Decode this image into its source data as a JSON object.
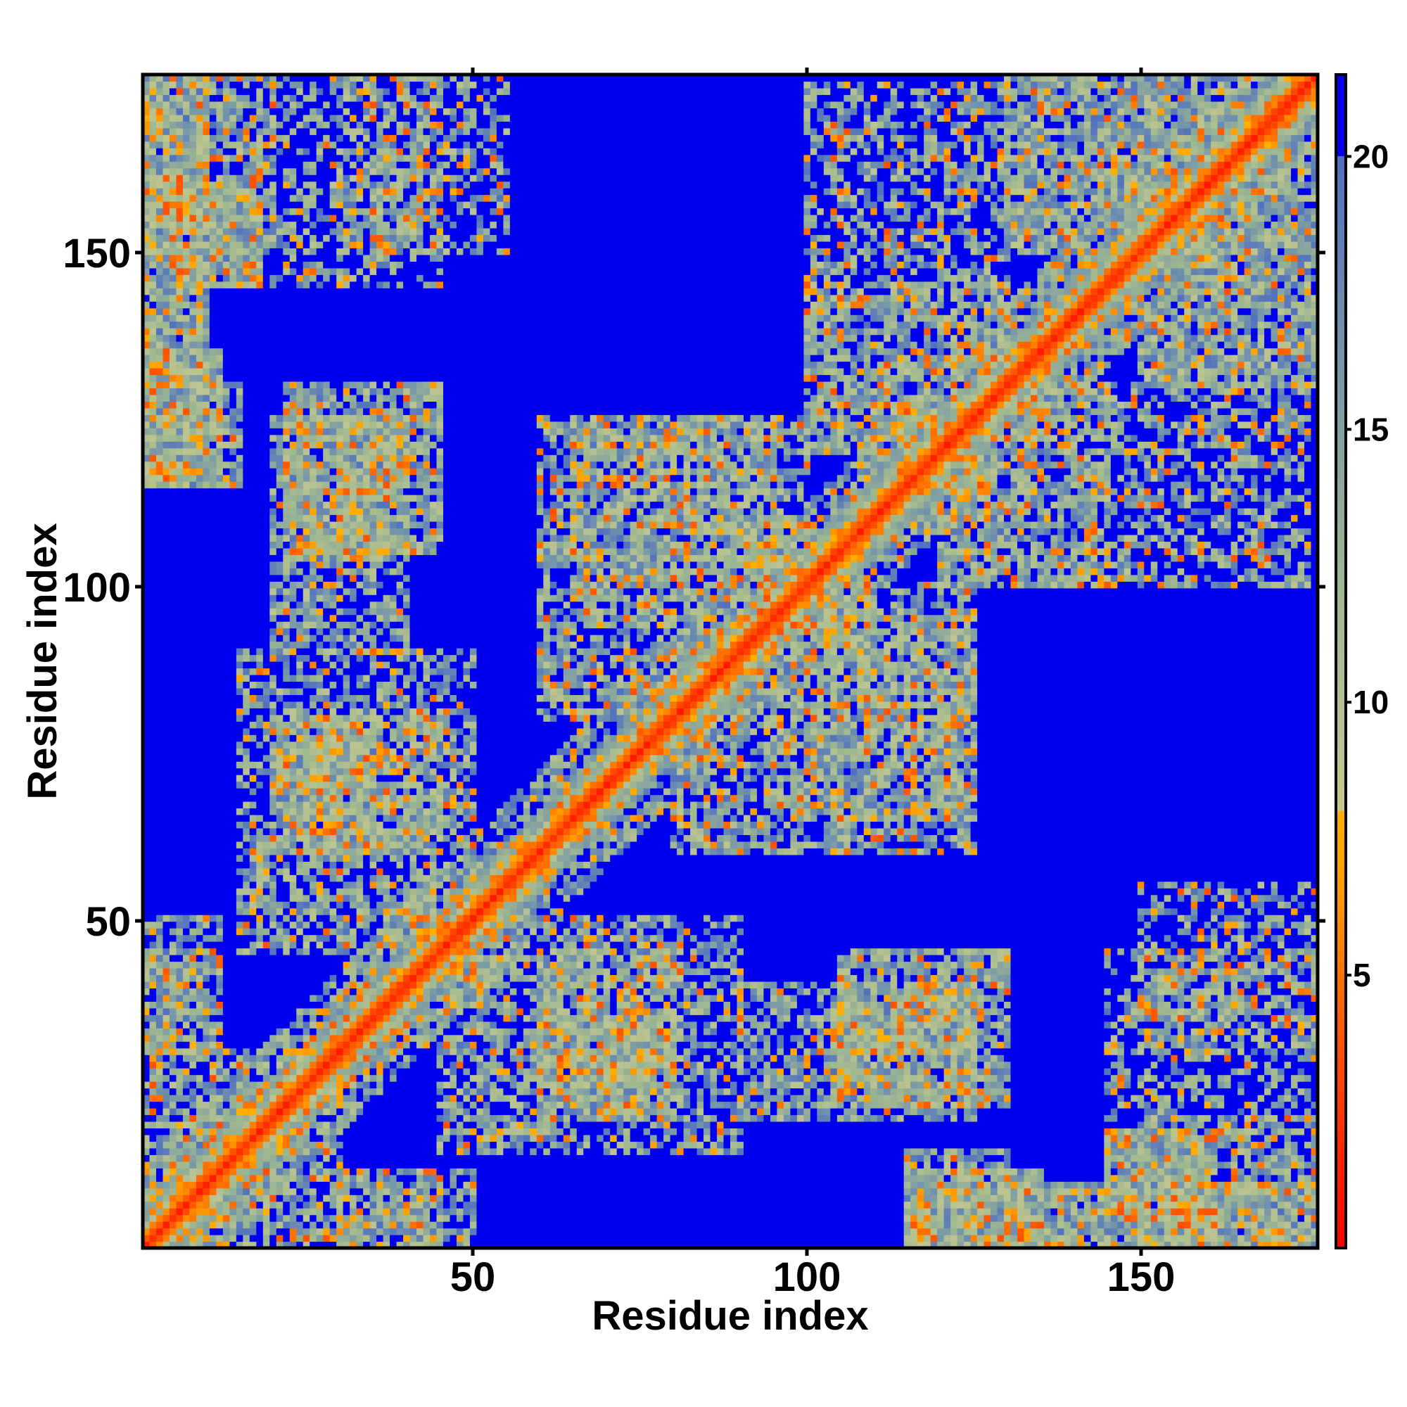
{
  "chart_data": {
    "type": "heatmap",
    "title": "",
    "xlabel": "Residue index",
    "ylabel": "Residue index",
    "n_residues": 176,
    "xlim": [
      1,
      176
    ],
    "ylim": [
      1,
      176
    ],
    "x_ticks": [
      50,
      100,
      150
    ],
    "y_ticks": [
      50,
      100,
      150
    ],
    "x_tick_labels": [
      "50",
      "100",
      "150"
    ],
    "y_tick_labels": [
      "50",
      "100",
      "150"
    ],
    "colorbar": {
      "range": [
        0,
        21.5
      ],
      "ticks": [
        5,
        10,
        15,
        20
      ],
      "tick_labels": [
        "5",
        "10",
        "15",
        "20"
      ],
      "stops": [
        {
          "value": 0,
          "color": "#ff0000"
        },
        {
          "value": 4,
          "color": "#ff5a00"
        },
        {
          "value": 6.5,
          "color": "#ff9900"
        },
        {
          "value": 8,
          "color": "#ffb000"
        },
        {
          "value": 8.01,
          "color": "#c8c890"
        },
        {
          "value": 12,
          "color": "#a0b890"
        },
        {
          "value": 16,
          "color": "#7898a8"
        },
        {
          "value": 20,
          "color": "#5070c0"
        },
        {
          "value": 20.01,
          "color": "#0000ee"
        }
      ]
    },
    "diagonal_band_width": 2.2,
    "contact_regions": [
      {
        "x": [
          1,
          10
        ],
        "y": [
          130,
          176
        ],
        "strength": 0.9
      },
      {
        "x": [
          5,
          18
        ],
        "y": [
          145,
          160
        ],
        "strength": 0.95
      },
      {
        "x": [
          1,
          12
        ],
        "y": [
          115,
          135
        ],
        "strength": 0.95
      },
      {
        "x": [
          22,
          45
        ],
        "y": [
          105,
          130
        ],
        "strength": 0.8
      },
      {
        "x": [
          30,
          35
        ],
        "y": [
          105,
          125
        ],
        "strength": 0.9
      },
      {
        "x": [
          20,
          35
        ],
        "y": [
          60,
          80
        ],
        "strength": 0.85
      },
      {
        "x": [
          15,
          50
        ],
        "y": [
          45,
          90
        ],
        "strength": 0.6
      },
      {
        "x": [
          1,
          12
        ],
        "y": [
          30,
          50
        ],
        "strength": 0.7
      },
      {
        "x": [
          1,
          30
        ],
        "y": [
          1,
          30
        ],
        "strength": 0.6
      },
      {
        "x": [
          30,
          45
        ],
        "y": [
          1,
          10
        ],
        "strength": 0.5
      },
      {
        "x": [
          60,
          95
        ],
        "y": [
          80,
          125
        ],
        "strength": 0.65
      },
      {
        "x": [
          60,
          80
        ],
        "y": [
          25,
          45
        ],
        "strength": 0.65
      },
      {
        "x": [
          90,
          125
        ],
        "y": [
          20,
          40
        ],
        "strength": 0.7
      },
      {
        "x": [
          115,
          130
        ],
        "y": [
          1,
          15
        ],
        "strength": 0.75
      },
      {
        "x": [
          150,
          176
        ],
        "y": [
          1,
          20
        ],
        "strength": 0.75
      },
      {
        "x": [
          150,
          176
        ],
        "y": [
          130,
          176
        ],
        "strength": 0.85
      },
      {
        "x": [
          100,
          130
        ],
        "y": [
          120,
          175
        ],
        "strength": 0.55
      },
      {
        "x": [
          95,
          125
        ],
        "y": [
          65,
          100
        ],
        "strength": 0.6
      },
      {
        "x": [
          150,
          176
        ],
        "y": [
          30,
          55
        ],
        "strength": 0.5
      },
      {
        "x": [
          120,
          145
        ],
        "y": [
          100,
          130
        ],
        "strength": 0.55
      },
      {
        "x": [
          145,
          176
        ],
        "y": [
          20,
          45
        ],
        "strength": 0.45
      }
    ]
  }
}
